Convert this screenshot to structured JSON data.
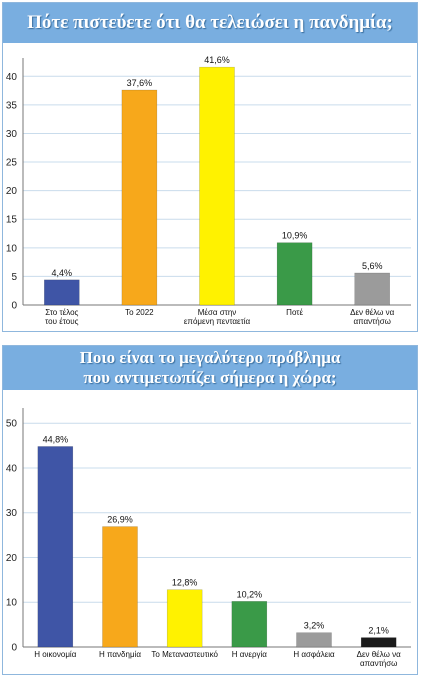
{
  "colors": {
    "header_bg": "#79aee0",
    "grid": "#c9dcec"
  },
  "chart_data": [
    {
      "type": "bar",
      "title": "Πότε πιστεύετε ότι θα τελειώσει η πανδημία;",
      "categories": [
        [
          "Στο τέλος",
          "του έτους"
        ],
        [
          "Το 2022"
        ],
        [
          "Μέσα στην",
          "επόμενη πενταετία"
        ],
        [
          "Ποτέ"
        ],
        [
          "Δεν θέλω να",
          "απαντήσω"
        ]
      ],
      "values": [
        4.4,
        37.6,
        41.6,
        10.9,
        5.6
      ],
      "value_labels": [
        "4,4%",
        "37,6%",
        "41,6%",
        "10,9%",
        "5,6%"
      ],
      "bar_colors": [
        "#3f55a6",
        "#f7a81b",
        "#fff200",
        "#3a9a48",
        "#9b9b9b"
      ],
      "yticks": [
        0,
        5,
        10,
        15,
        20,
        25,
        30,
        35,
        40
      ],
      "ylim": [
        0,
        42.5
      ],
      "grid": true
    },
    {
      "type": "bar",
      "title": [
        "Ποιο είναι το μεγαλύτερο πρόβλημα",
        "που αντιμετωπίζει σήμερα η χώρα;"
      ],
      "categories": [
        [
          "Η οικονομία"
        ],
        [
          "Η πανδημία"
        ],
        [
          "Το Μεταναστευτικό"
        ],
        [
          "Η ανεργία"
        ],
        [
          "Η ασφάλεια"
        ],
        [
          "Δεν θέλω να",
          "απαντήσω"
        ]
      ],
      "values": [
        44.8,
        26.9,
        12.8,
        10.2,
        3.2,
        2.1
      ],
      "value_labels": [
        "44,8%",
        "26,9%",
        "12,8%",
        "10,2%",
        "3,2%",
        "2,1%"
      ],
      "bar_colors": [
        "#3f55a6",
        "#f7a81b",
        "#fff200",
        "#3a9a48",
        "#9b9b9b",
        "#1a1a1a"
      ],
      "yticks": [
        0,
        10,
        20,
        30,
        40,
        50
      ],
      "ylim": [
        0,
        52.5
      ],
      "grid": true
    }
  ]
}
